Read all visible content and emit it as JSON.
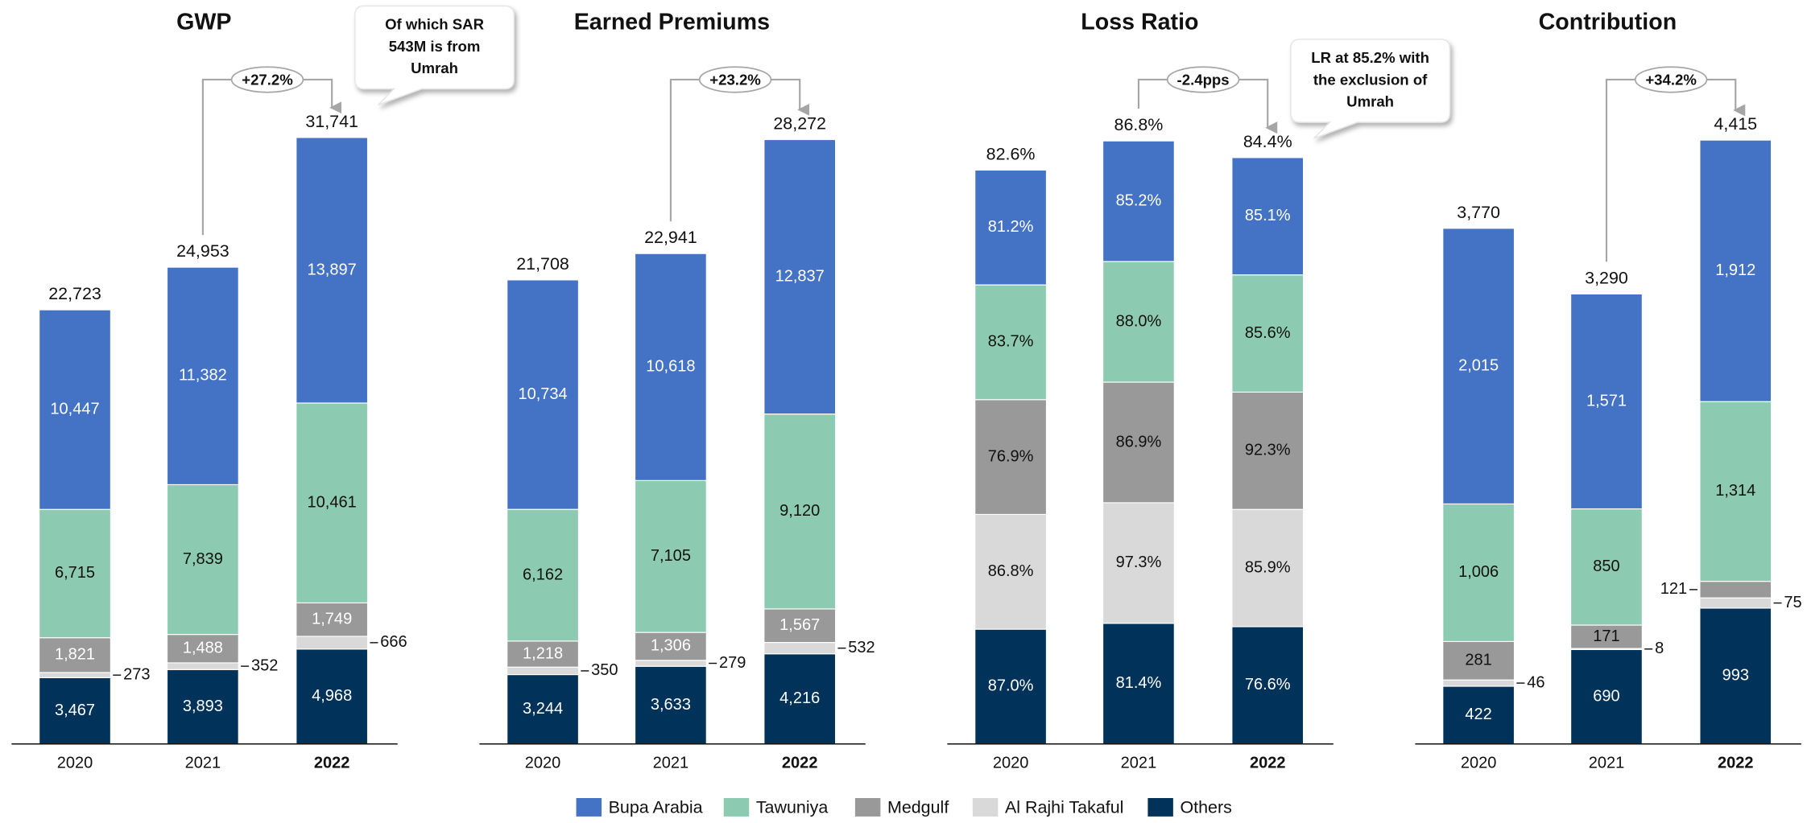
{
  "chart_data": [
    {
      "type": "stacked_bar",
      "title": "GWP",
      "categories": [
        "2020",
        "2021",
        "2022"
      ],
      "ylim": [
        0,
        32000
      ],
      "totals": [
        22723,
        24953,
        31741
      ],
      "total_labels": [
        "22,723",
        "24,953",
        "31,741"
      ],
      "growth_label": "+27.2%",
      "callout": [
        "Of which SAR",
        "543M is from",
        "Umrah"
      ],
      "series": [
        {
          "name": "Bupa Arabia",
          "color": "#4472c4",
          "values": [
            10447,
            11382,
            13897
          ],
          "value_labels": [
            "10,447",
            "11,382",
            "13,897"
          ]
        },
        {
          "name": "Tawuniya",
          "color": "#8ccbb1",
          "values": [
            6715,
            7839,
            10461
          ],
          "value_labels": [
            "6,715",
            "7,839",
            "10,461"
          ]
        },
        {
          "name": "Medgulf",
          "color": "#999999",
          "values": [
            1821,
            1488,
            1749
          ],
          "value_labels": [
            "1,821",
            "1,488",
            "1,749"
          ]
        },
        {
          "name": "Al Rajhi Takaful",
          "color": "#d9d9d9",
          "values": [
            273,
            352,
            666
          ]
        },
        {
          "name": "Others",
          "color": "#00325a",
          "values": [
            3467,
            3893,
            4968
          ],
          "value_labels": [
            "3,467",
            "3,893",
            "4,968"
          ]
        }
      ]
    },
    {
      "type": "stacked_bar",
      "title": "Earned Premiums",
      "categories": [
        "2020",
        "2021",
        "2022"
      ],
      "ylim": [
        0,
        28600
      ],
      "totals": [
        21708,
        22941,
        28272
      ],
      "total_labels": [
        "21,708",
        "22,941",
        "28,272"
      ],
      "growth_label": "+23.2%",
      "series": [
        {
          "color": "#4472c4",
          "values": [
            10734,
            10618,
            12837
          ],
          "value_labels": [
            "10,734",
            "10,618",
            "12,837"
          ]
        },
        {
          "color": "#8ccbb1",
          "values": [
            6162,
            7105,
            9120
          ],
          "value_labels": [
            "6,162",
            "7,105",
            "9,120"
          ]
        },
        {
          "color": "#999999",
          "values": [
            1218,
            1306,
            1567
          ],
          "value_labels": [
            "1,218",
            "1,306",
            "1,567"
          ]
        },
        {
          "color": "#d9d9d9",
          "values": [
            350,
            279,
            532
          ]
        },
        {
          "color": "#00325a",
          "values": [
            3244,
            3633,
            4216
          ],
          "value_labels": [
            "3,244",
            "3,633",
            "4,216"
          ]
        }
      ]
    },
    {
      "type": "segmented_bar",
      "title": "Loss Ratio",
      "categories": [
        "2020",
        "2021",
        "2022"
      ],
      "ylim": [
        0,
        88
      ],
      "totals": [
        82.6,
        86.8,
        84.4
      ],
      "total_labels": [
        "82.6%",
        "86.8%",
        "84.4%"
      ],
      "growth_label": "-2.4pps",
      "callout": [
        "LR at 85.2% with",
        "the exclusion of",
        "Umrah"
      ],
      "series": [
        {
          "color": "#4472c4",
          "values": [
            81.2,
            85.2,
            85.1
          ],
          "value_labels": [
            "81.2%",
            "85.2%",
            "85.1%"
          ]
        },
        {
          "color": "#8ccbb1",
          "values": [
            83.7,
            88.0,
            85.6
          ],
          "value_labels": [
            "83.7%",
            "88.0%",
            "85.6%"
          ]
        },
        {
          "color": "#999999",
          "values": [
            76.9,
            86.9,
            92.3
          ],
          "value_labels": [
            "76.9%",
            "86.9%",
            "92.3%"
          ]
        },
        {
          "color": "#d9d9d9",
          "values": [
            86.8,
            97.3,
            85.9
          ],
          "value_labels": [
            "86.8%",
            "97.3%",
            "85.9%"
          ]
        },
        {
          "color": "#00325a",
          "values": [
            87.0,
            81.4,
            76.6
          ],
          "value_labels": [
            "87.0%",
            "81.4%",
            "76.6%"
          ]
        }
      ]
    },
    {
      "type": "stacked_bar",
      "title": "Contribution",
      "categories": [
        "2020",
        "2021",
        "2022"
      ],
      "ylim": [
        0,
        4470
      ],
      "totals": [
        3770,
        3290,
        4415
      ],
      "total_labels": [
        "3,770",
        "3,290",
        "4,415"
      ],
      "growth_label": "+34.2%",
      "series": [
        {
          "color": "#4472c4",
          "values": [
            2015,
            1571,
            1912
          ],
          "value_labels": [
            "2,015",
            "1,571",
            "1,912"
          ]
        },
        {
          "color": "#8ccbb1",
          "values": [
            1006,
            850,
            1314
          ],
          "value_labels": [
            "1,006",
            "850",
            "1,314"
          ]
        },
        {
          "color": "#999999",
          "values": [
            281,
            171,
            121
          ]
        },
        {
          "color": "#d9d9d9",
          "values": [
            46,
            8,
            75
          ]
        },
        {
          "color": "#00325a",
          "values": [
            422,
            690,
            993
          ]
        }
      ]
    }
  ]
}
